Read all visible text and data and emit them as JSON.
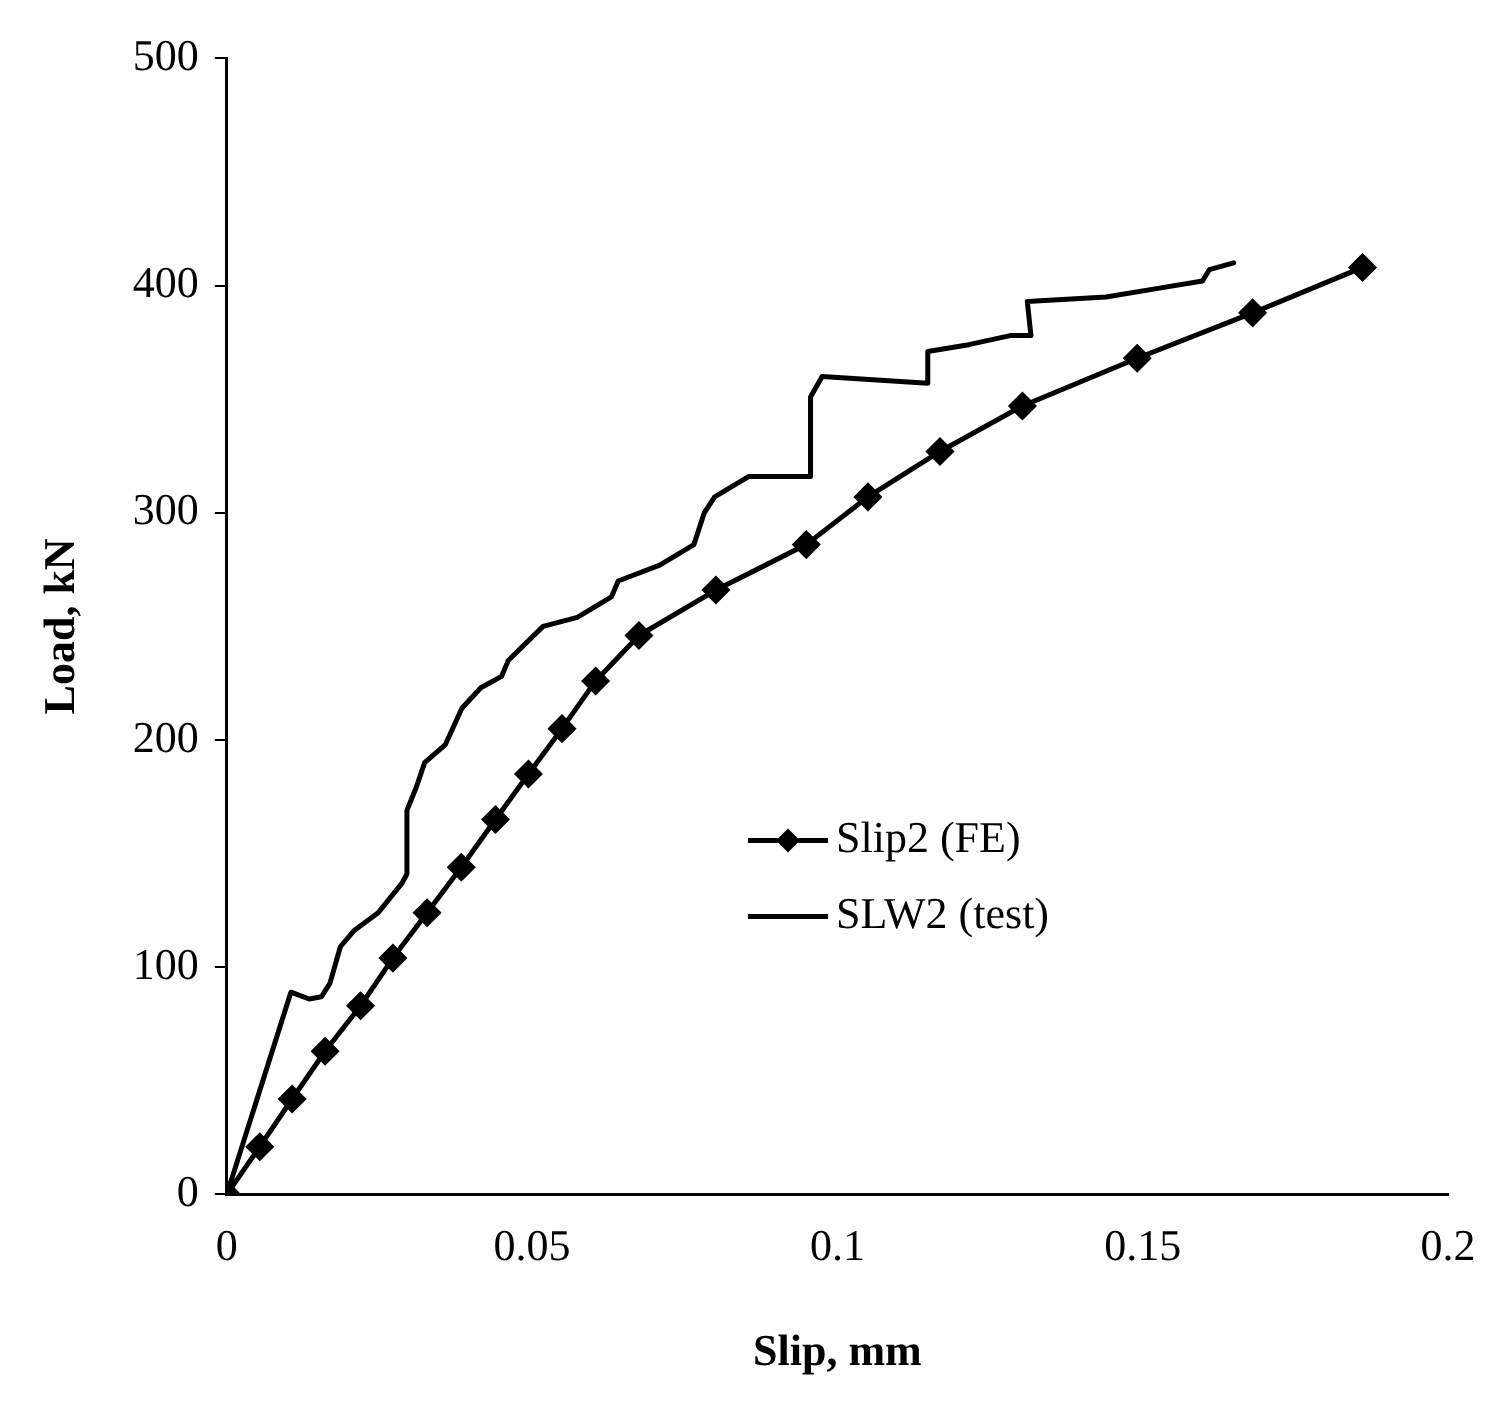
{
  "chart_data": {
    "type": "line",
    "xlabel": "Slip, mm",
    "ylabel": "Load, kN",
    "xlim": [
      0,
      0.2
    ],
    "xticks": [
      0,
      0.05,
      0.1,
      0.15,
      0.2
    ],
    "ylim": [
      0,
      500
    ],
    "yticks": [
      0,
      100,
      200,
      300,
      400,
      500
    ],
    "grid": false,
    "legend": "bottom right",
    "series": [
      {
        "name": "Slip2 (FE)",
        "color": "#000000",
        "marker": "diamond",
        "x": [
          0,
          0.0054,
          0.0107,
          0.0161,
          0.0219,
          0.0272,
          0.0328,
          0.0384,
          0.044,
          0.0494,
          0.0549,
          0.0604,
          0.0675,
          0.0801,
          0.0949,
          0.105,
          0.1168,
          0.1303,
          0.1491,
          0.168,
          0.186
        ],
        "values": [
          0,
          21,
          42,
          63,
          83,
          104,
          124,
          144,
          165,
          185,
          205,
          226,
          246,
          266,
          286,
          307,
          327,
          347,
          368,
          388,
          408
        ]
      },
      {
        "name": "SLW2 (test)",
        "color": "#000000",
        "marker": "none",
        "x": [
          0,
          0.0105,
          0.0135,
          0.0155,
          0.0169,
          0.0186,
          0.0208,
          0.0248,
          0.0287,
          0.0295,
          0.0295,
          0.031,
          0.0324,
          0.0358,
          0.0385,
          0.0416,
          0.045,
          0.0461,
          0.0518,
          0.0574,
          0.063,
          0.0641,
          0.0709,
          0.0765,
          0.0782,
          0.0799,
          0.0855,
          0.0956,
          0.0956,
          0.0975,
          0.1148,
          0.1148,
          0.1215,
          0.1283,
          0.1317,
          0.1311,
          0.144,
          0.153,
          0.1598,
          0.1609,
          0.1649
        ],
        "values": [
          0,
          89,
          86,
          87,
          93,
          109,
          116,
          124,
          137,
          141,
          169,
          179,
          190,
          198,
          214,
          223,
          228,
          235,
          250,
          254,
          263,
          270,
          277,
          286,
          300,
          307,
          316,
          316,
          351,
          360,
          357,
          371,
          374,
          378,
          378,
          393,
          395,
          399,
          402,
          407,
          410
        ]
      }
    ]
  }
}
